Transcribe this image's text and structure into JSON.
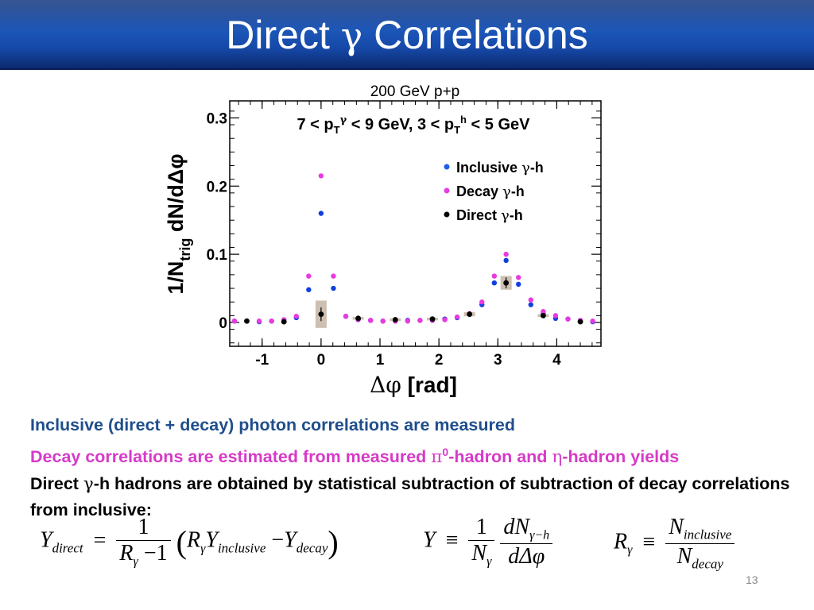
{
  "slide": {
    "title_prefix": "Direct ",
    "title_symbol": "γ",
    "title_suffix": " Correlations",
    "number": "13"
  },
  "chart_data": {
    "type": "scatter",
    "title": "200 GeV p+p",
    "kinematics": {
      "a": "7 < p",
      "a_sub": "T",
      "a_sup": "γ",
      "b": " < 9 GeV,  3 < p",
      "b_sub": "T",
      "b_sup": "h",
      "c": " < 5 GeV"
    },
    "xlabel_symbol": "Δφ",
    "xlabel_text": " [rad]",
    "ylabel_main": "1/N",
    "ylabel_sub": "trig",
    "ylabel_rest": " dN/dΔφ",
    "xlim": [
      -1.55,
      4.75
    ],
    "ylim": [
      -0.035,
      0.325
    ],
    "xticks": [
      "-1",
      "0",
      "1",
      "2",
      "3",
      "4"
    ],
    "xtick_values": [
      -1,
      0,
      1,
      2,
      3,
      4
    ],
    "yticks": [
      "0",
      "0.1",
      "0.2",
      "0.3"
    ],
    "ytick_values": [
      0,
      0.1,
      0.2,
      0.3
    ],
    "legend": [
      {
        "name": "Inclusive ",
        "symbol": "γ",
        "suffix": "-h",
        "color": "#2060e0"
      },
      {
        "name": "Decay ",
        "symbol": "γ",
        "suffix": "-h",
        "color": "#e040e0"
      },
      {
        "name": "Direct ",
        "symbol": "γ",
        "suffix": "-h",
        "color": "#000000"
      }
    ],
    "series": [
      {
        "name": "Inclusive γ-h",
        "color": "#1040e0",
        "x": [
          -1.47,
          -1.26,
          -1.05,
          -0.84,
          -0.63,
          -0.42,
          -0.21,
          0.0,
          0.21,
          0.42,
          0.63,
          0.84,
          1.05,
          1.26,
          1.47,
          1.68,
          1.89,
          2.1,
          2.31,
          2.52,
          2.73,
          2.94,
          3.14,
          3.35,
          3.56,
          3.77,
          3.98,
          4.19,
          4.4,
          4.61
        ],
        "y": [
          0.002,
          0.002,
          0.001,
          0.002,
          0.004,
          0.007,
          0.048,
          0.16,
          0.05,
          0.009,
          0.004,
          0.003,
          0.002,
          0.002,
          0.003,
          0.003,
          0.004,
          0.005,
          0.007,
          0.012,
          0.026,
          0.058,
          0.091,
          0.056,
          0.026,
          0.013,
          0.006,
          0.005,
          0.002,
          0.001
        ]
      },
      {
        "name": "Decay γ-h",
        "color": "#e83ae0",
        "x": [
          -1.47,
          -1.26,
          -1.05,
          -0.84,
          -0.63,
          -0.42,
          -0.21,
          0.0,
          0.21,
          0.42,
          0.63,
          0.84,
          1.05,
          1.26,
          1.47,
          1.68,
          1.89,
          2.1,
          2.31,
          2.52,
          2.73,
          2.94,
          3.14,
          3.35,
          3.56,
          3.77,
          3.98,
          4.19,
          4.4,
          4.61
        ],
        "y": [
          0.002,
          0.002,
          0.002,
          0.002,
          0.004,
          0.009,
          0.068,
          0.215,
          0.068,
          0.009,
          0.004,
          0.003,
          0.002,
          0.002,
          0.002,
          0.003,
          0.003,
          0.004,
          0.008,
          0.013,
          0.03,
          0.068,
          0.1,
          0.066,
          0.033,
          0.016,
          0.01,
          0.005,
          0.003,
          0.002
        ]
      },
      {
        "name": "Direct γ-h",
        "color": "#000000",
        "x": [
          -1.26,
          -0.63,
          0.0,
          0.63,
          1.26,
          1.89,
          2.52,
          3.14,
          3.77,
          4.4
        ],
        "y": [
          0.002,
          0.001,
          0.012,
          0.006,
          0.004,
          0.005,
          0.012,
          0.058,
          0.01,
          0.001
        ],
        "yerr": [
          0.003,
          0.003,
          0.01,
          0.004,
          0.002,
          0.003,
          0.004,
          0.008,
          0.003,
          0.003
        ],
        "sys": [
          0,
          0,
          0.02,
          0.002,
          0.002,
          0.002,
          0.003,
          0.01,
          0.002,
          0
        ]
      }
    ]
  },
  "text": {
    "line1": "Inclusive (direct + decay) photon correlations are measured",
    "line2_a": "Decay correlations are estimated from measured ",
    "line2_pi": "π",
    "line2_sup": "0",
    "line2_b": "-hadron and  ",
    "line2_eta": "η",
    "line2_c": "-hadron yields",
    "line3_a": "Direct ",
    "line3_gamma": "γ",
    "line3_b": "-h hadrons are obtained by statistical subtraction of subtraction of decay correlations from inclusive:"
  },
  "equations": {
    "e1_lhs": "Y",
    "e1_lhs_sub": "direct",
    "e1_eq": "=",
    "e1_num": "1",
    "e1_den_R": "R",
    "e1_den_sub": "γ",
    "e1_den_rest": " −1",
    "e1_open": "(",
    "e1_R": "R",
    "e1_R_sub": "γ",
    "e1_Y": "Y",
    "e1_Y_sub": "inclusive",
    "e1_minus": " −",
    "e1_Y2": "Y",
    "e1_Y2_sub": "decay",
    "e1_close": ")",
    "e2_lhs": "Y",
    "e2_eq": "≡",
    "e2_num1": "1",
    "e2_den1": "N",
    "e2_den1_sub": "γ",
    "e2_num2": "dN",
    "e2_num2_sub": "γ−h",
    "e2_den2": "dΔφ",
    "e3_lhs": "R",
    "e3_lhs_sub": "γ",
    "e3_eq": "≡",
    "e3_num": "N",
    "e3_num_sub": "inclusive",
    "e3_den": "N",
    "e3_den_sub": "decay"
  }
}
